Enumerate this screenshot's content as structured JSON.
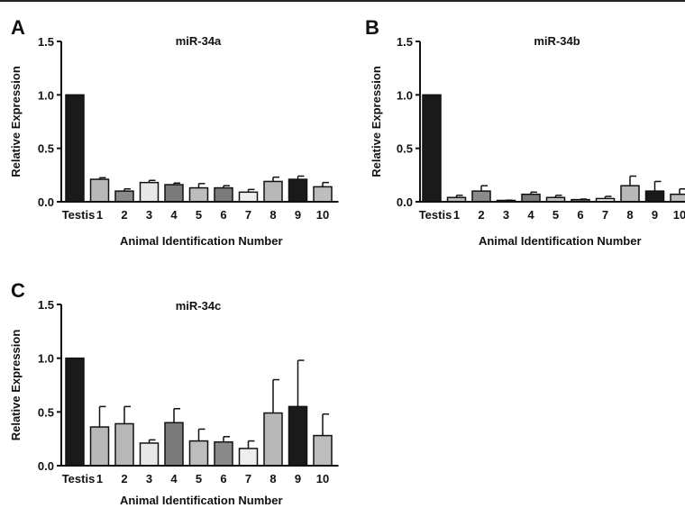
{
  "panels": [
    {
      "letter": "A"
    },
    {
      "letter": "B"
    },
    {
      "letter": "C"
    }
  ],
  "chart_data": [
    {
      "type": "bar",
      "title": "miR-34a",
      "xlabel": "Animal Identification Number",
      "ylabel": "Relative Expression",
      "ylim": [
        0,
        1.5
      ],
      "yticks": [
        "0.0",
        "0.5",
        "1.0",
        "1.5"
      ],
      "categories": [
        "Testis",
        "1",
        "2",
        "3",
        "4",
        "5",
        "6",
        "7",
        "8",
        "9",
        "10"
      ],
      "values": [
        1.0,
        0.21,
        0.1,
        0.18,
        0.16,
        0.13,
        0.13,
        0.09,
        0.19,
        0.21,
        0.14
      ],
      "errors": [
        0,
        0.015,
        0.02,
        0.02,
        0.015,
        0.04,
        0.02,
        0.025,
        0.04,
        0.03,
        0.04
      ],
      "bar_colors": [
        "#1a1a1a",
        "#b8b8b8",
        "#8a8a8a",
        "#e8e8e8",
        "#7a7a7a",
        "#bdbdbd",
        "#7a7a7a",
        "#eeeeee",
        "#b8b8b8",
        "#1a1a1a",
        "#bdbdbd"
      ],
      "grid": false
    },
    {
      "type": "bar",
      "title": "miR-34b",
      "xlabel": "Animal Identification Number",
      "ylabel": "Relative Expression",
      "ylim": [
        0,
        1.5
      ],
      "yticks": [
        "0.0",
        "0.5",
        "1.0",
        "1.5"
      ],
      "categories": [
        "Testis",
        "1",
        "2",
        "3",
        "4",
        "5",
        "6",
        "7",
        "8",
        "9",
        "10"
      ],
      "values": [
        1.0,
        0.04,
        0.1,
        0.01,
        0.07,
        0.04,
        0.02,
        0.03,
        0.15,
        0.1,
        0.07
      ],
      "errors": [
        0,
        0.02,
        0.05,
        0.005,
        0.02,
        0.02,
        0.005,
        0.02,
        0.09,
        0.09,
        0.05
      ],
      "bar_colors": [
        "#1a1a1a",
        "#b8b8b8",
        "#8a8a8a",
        "#e8e8e8",
        "#7a7a7a",
        "#bdbdbd",
        "#7a7a7a",
        "#eeeeee",
        "#b8b8b8",
        "#1a1a1a",
        "#bdbdbd"
      ],
      "grid": false
    },
    {
      "type": "bar",
      "title": "miR-34c",
      "xlabel": "Animal Identification Number",
      "ylabel": "Relative Expression",
      "ylim": [
        0,
        1.5
      ],
      "yticks": [
        "0.0",
        "0.5",
        "1.0",
        "1.5"
      ],
      "categories": [
        "Testis",
        "1",
        "2",
        "3",
        "4",
        "5",
        "6",
        "7",
        "8",
        "9",
        "10"
      ],
      "values": [
        1.0,
        0.36,
        0.39,
        0.21,
        0.4,
        0.23,
        0.22,
        0.16,
        0.49,
        0.55,
        0.28
      ],
      "errors": [
        0,
        0.19,
        0.16,
        0.03,
        0.13,
        0.11,
        0.05,
        0.07,
        0.31,
        0.43,
        0.2
      ],
      "bar_colors": [
        "#1a1a1a",
        "#b8b8b8",
        "#b8b8b8",
        "#e8e8e8",
        "#7a7a7a",
        "#bdbdbd",
        "#8a8a8a",
        "#eeeeee",
        "#b8b8b8",
        "#1a1a1a",
        "#bdbdbd"
      ],
      "grid": false
    }
  ]
}
